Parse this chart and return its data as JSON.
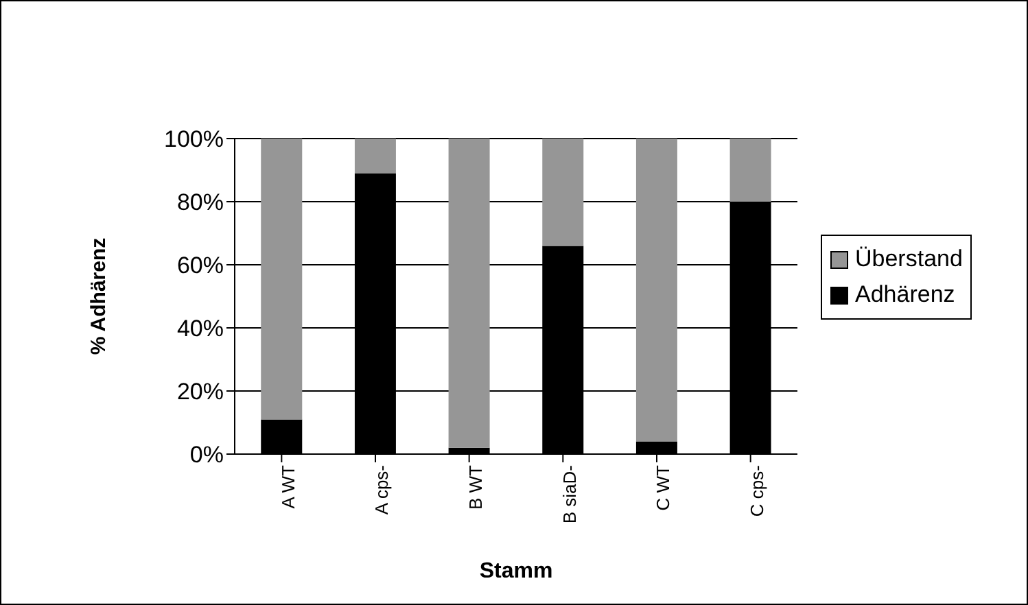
{
  "chart_data": {
    "type": "bar",
    "stacked": true,
    "xlabel": "Stamm",
    "ylabel": "% Adhärenz",
    "categories": [
      "A WT",
      "A cps-",
      "B WT",
      "B siaD-",
      "C WT",
      "C cps-"
    ],
    "series": [
      {
        "name": "Adhärenz",
        "color": "#000000",
        "values": [
          11,
          89,
          2,
          66,
          4,
          80
        ]
      },
      {
        "name": "Überstand",
        "color": "#969696",
        "values": [
          89,
          11,
          98,
          34,
          96,
          20
        ]
      }
    ],
    "ylim": [
      0,
      100
    ],
    "yticks": [
      {
        "value": 0,
        "label": "0%"
      },
      {
        "value": 20,
        "label": "20%"
      },
      {
        "value": 40,
        "label": "40%"
      },
      {
        "value": 60,
        "label": "60%"
      },
      {
        "value": 80,
        "label": "80%"
      },
      {
        "value": 100,
        "label": "100%"
      }
    ],
    "grid": "y",
    "legend": "right"
  }
}
